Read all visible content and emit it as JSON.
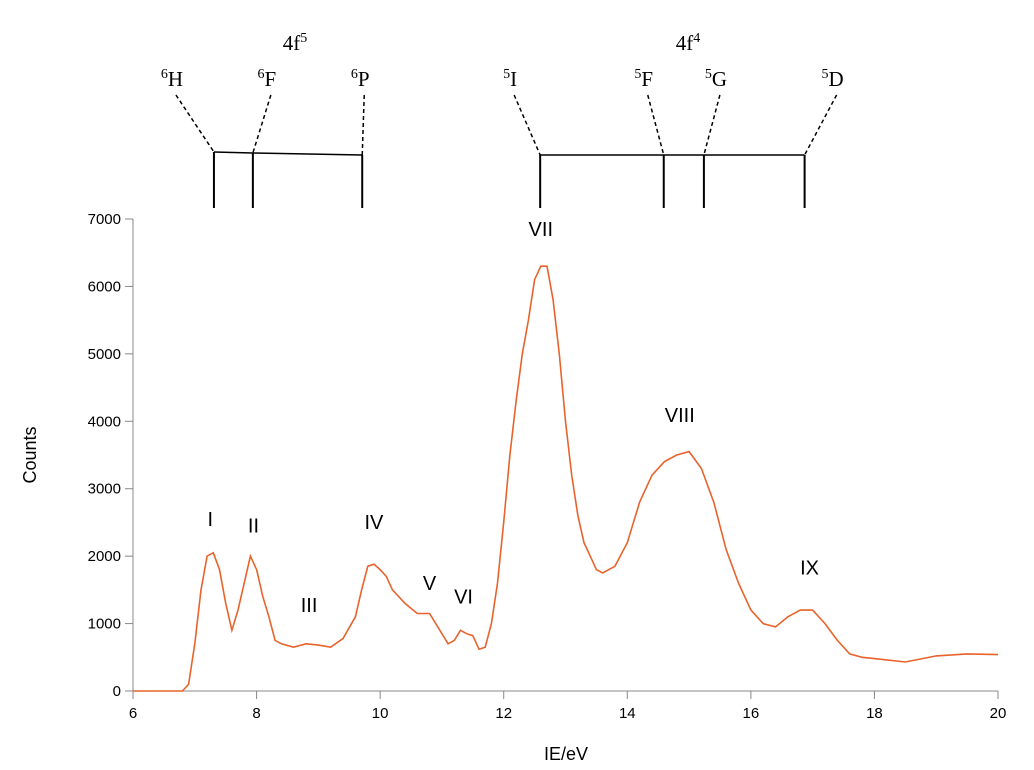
{
  "chart_data": {
    "type": "line",
    "x_label": "IE/eV",
    "y_label": "Counts",
    "xlim": [
      6,
      20
    ],
    "xticks": [
      6,
      8,
      10,
      12,
      14,
      16,
      18,
      20
    ],
    "ylim": [
      0,
      7000
    ],
    "yticks": [
      0,
      1000,
      2000,
      3000,
      4000,
      5000,
      6000,
      7000
    ],
    "color": "#e8632b",
    "x": [
      6.0,
      6.8,
      6.9,
      7.0,
      7.1,
      7.2,
      7.3,
      7.4,
      7.5,
      7.6,
      7.7,
      7.8,
      7.9,
      8.0,
      8.1,
      8.2,
      8.3,
      8.4,
      8.6,
      8.8,
      9.0,
      9.2,
      9.4,
      9.6,
      9.7,
      9.8,
      9.9,
      10.0,
      10.1,
      10.2,
      10.4,
      10.6,
      10.8,
      11.0,
      11.1,
      11.2,
      11.3,
      11.4,
      11.5,
      11.6,
      11.7,
      11.8,
      11.9,
      12.0,
      12.1,
      12.2,
      12.3,
      12.4,
      12.5,
      12.6,
      12.7,
      12.8,
      12.9,
      13.0,
      13.1,
      13.2,
      13.3,
      13.4,
      13.5,
      13.6,
      13.8,
      14.0,
      14.2,
      14.4,
      14.6,
      14.8,
      15.0,
      15.2,
      15.4,
      15.6,
      15.8,
      16.0,
      16.2,
      16.4,
      16.6,
      16.8,
      17.0,
      17.2,
      17.4,
      17.6,
      17.8,
      18.0,
      18.5,
      19.0,
      19.5,
      20.0
    ],
    "values": [
      0,
      0,
      100,
      700,
      1500,
      2000,
      2050,
      1800,
      1300,
      900,
      1200,
      1600,
      2000,
      1800,
      1400,
      1100,
      750,
      700,
      650,
      700,
      680,
      650,
      780,
      1100,
      1500,
      1850,
      1880,
      1800,
      1700,
      1500,
      1300,
      1150,
      1150,
      850,
      700,
      750,
      900,
      850,
      820,
      620,
      650,
      1000,
      1600,
      2500,
      3500,
      4300,
      5000,
      5500,
      6100,
      6300,
      6300,
      5800,
      5000,
      4000,
      3200,
      2600,
      2200,
      2000,
      1800,
      1750,
      1850,
      2200,
      2800,
      3200,
      3400,
      3500,
      3550,
      3300,
      2800,
      2100,
      1600,
      1200,
      1000,
      950,
      1100,
      1200,
      1200,
      1000,
      750,
      550,
      500,
      480,
      430,
      520,
      550,
      540
    ],
    "annotations": [
      {
        "text": "I",
        "x": 7.25,
        "y": 2450
      },
      {
        "text": "II",
        "x": 7.95,
        "y": 2350
      },
      {
        "text": "III",
        "x": 8.85,
        "y": 1170
      },
      {
        "text": "IV",
        "x": 9.9,
        "y": 2400
      },
      {
        "text": "V",
        "x": 10.8,
        "y": 1500
      },
      {
        "text": "VI",
        "x": 11.35,
        "y": 1300
      },
      {
        "text": "VII",
        "x": 12.6,
        "y": 6750
      },
      {
        "text": "VIII",
        "x": 14.85,
        "y": 3990
      },
      {
        "text": "IX",
        "x": 16.95,
        "y": 1730
      }
    ],
    "levels": [
      {
        "config": {
          "text": "4f",
          "sup": "5"
        },
        "states": [
          {
            "sup": "6",
            "text": "H",
            "x": 7.31
          },
          {
            "sup": "6",
            "text": "F",
            "x": 7.94
          },
          {
            "sup": "6",
            "text": "P",
            "x": 9.71
          }
        ]
      },
      {
        "config": {
          "text": "4f",
          "sup": "4"
        },
        "states": [
          {
            "sup": "5",
            "text": "I",
            "x": 12.59
          },
          {
            "sup": "5",
            "text": "F",
            "x": 14.59
          },
          {
            "sup": "5",
            "text": "G",
            "x": 15.24
          },
          {
            "sup": "5",
            "text": "D",
            "x": 16.87
          }
        ]
      }
    ]
  }
}
